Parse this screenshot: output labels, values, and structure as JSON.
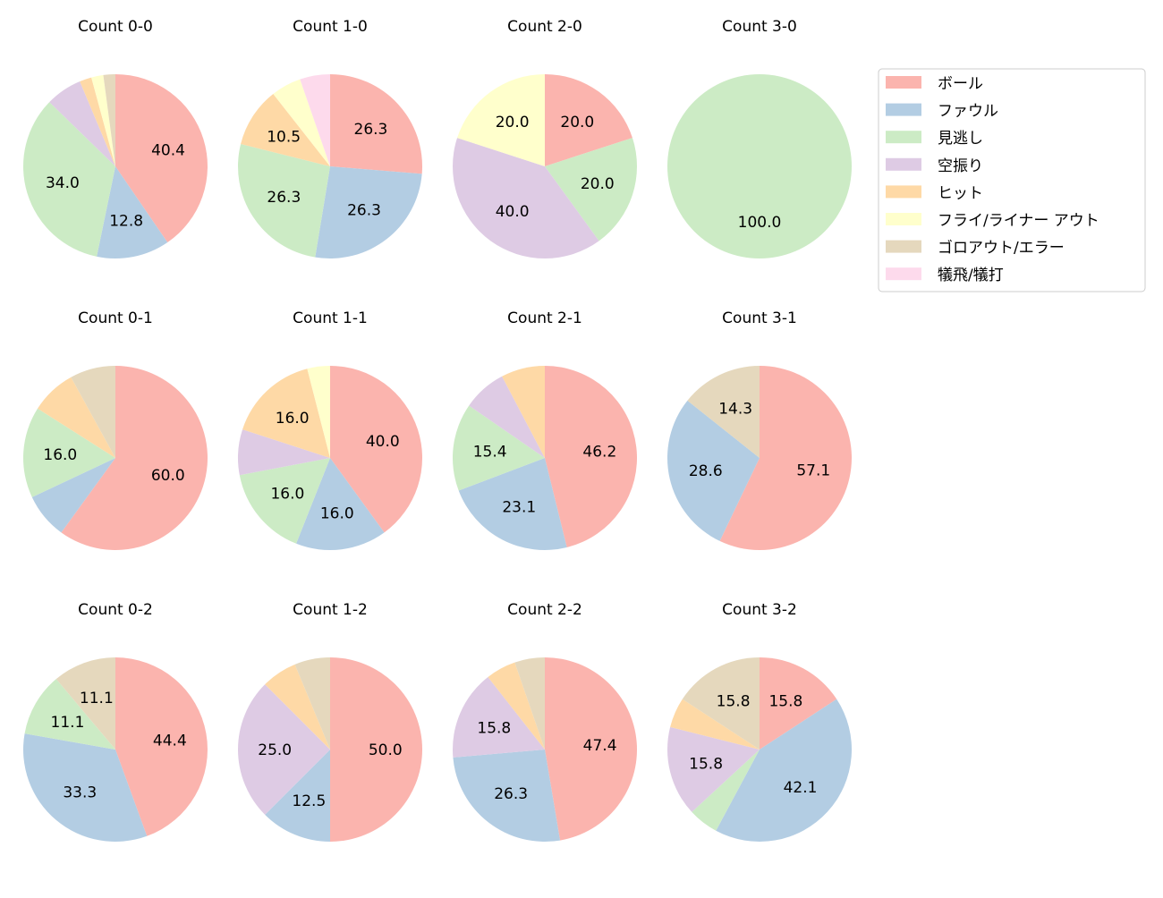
{
  "chart_data": {
    "type": "pie",
    "categories": [
      "ボール",
      "ファウル",
      "見逃し",
      "空振り",
      "ヒット",
      "フライ/ライナー アウト",
      "ゴロアウト/エラー",
      "犠飛/犠打"
    ],
    "colors": [
      "#fbb4ae",
      "#b3cde3",
      "#ccebc5",
      "#decbe4",
      "#fed9a6",
      "#ffffcc",
      "#e5d8bd",
      "#fddaec"
    ],
    "legend_position": "right",
    "start_angle": "top",
    "direction": "clockwise",
    "label_threshold_percent": 10,
    "charts": [
      {
        "title": "Count 0-0",
        "values": [
          40.4,
          12.8,
          34.0,
          6.4,
          2.1,
          2.1,
          2.1,
          0
        ]
      },
      {
        "title": "Count 1-0",
        "values": [
          26.3,
          26.3,
          26.3,
          0,
          10.5,
          5.3,
          0,
          5.3
        ]
      },
      {
        "title": "Count 2-0",
        "values": [
          20.0,
          0,
          20.0,
          40.0,
          0,
          20.0,
          0,
          0
        ]
      },
      {
        "title": "Count 3-0",
        "values": [
          0,
          0,
          100.0,
          0,
          0,
          0,
          0,
          0
        ]
      },
      {
        "title": "Count 0-1",
        "values": [
          60.0,
          8.0,
          16.0,
          0,
          8.0,
          0,
          8.0,
          0
        ]
      },
      {
        "title": "Count 1-1",
        "values": [
          40.0,
          16.0,
          16.0,
          8.0,
          16.0,
          4.0,
          0,
          0
        ]
      },
      {
        "title": "Count 2-1",
        "values": [
          46.2,
          23.1,
          15.4,
          7.7,
          7.7,
          0,
          0,
          0
        ]
      },
      {
        "title": "Count 3-1",
        "values": [
          57.1,
          28.6,
          0,
          0,
          0,
          0,
          14.3,
          0
        ]
      },
      {
        "title": "Count 0-2",
        "values": [
          44.4,
          33.3,
          11.1,
          0,
          0,
          0,
          11.1,
          0
        ]
      },
      {
        "title": "Count 1-2",
        "values": [
          50.0,
          12.5,
          0,
          25.0,
          6.25,
          0,
          6.25,
          0
        ]
      },
      {
        "title": "Count 2-2",
        "values": [
          47.4,
          26.3,
          0,
          15.8,
          5.3,
          0,
          5.3,
          0
        ]
      },
      {
        "title": "Count 3-2",
        "values": [
          15.8,
          42.1,
          5.3,
          15.8,
          5.3,
          0,
          15.8,
          0
        ]
      }
    ]
  }
}
